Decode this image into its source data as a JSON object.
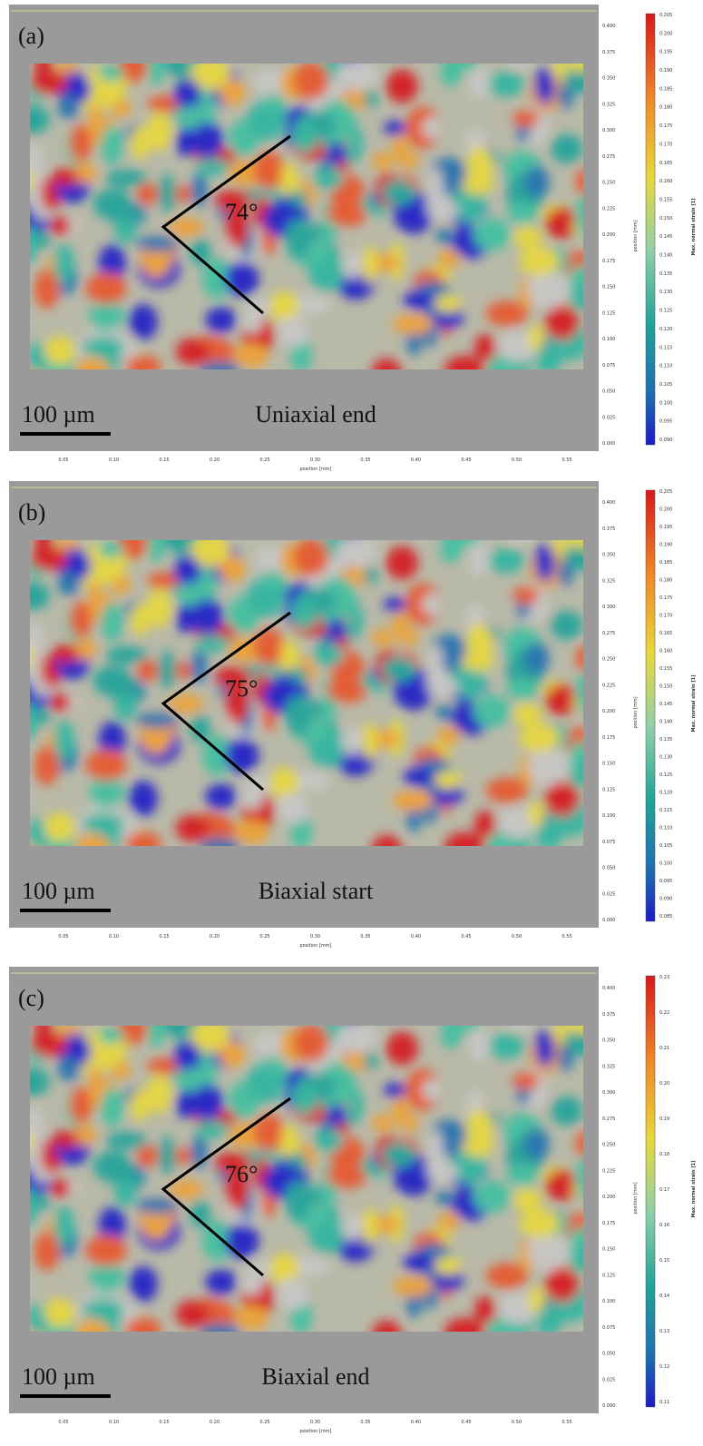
{
  "panels": [
    {
      "label": "(a)",
      "angle": "74°",
      "caption": "Uniaxial end",
      "scale_bar": "100 µm",
      "x_axis_label": "position [mm]",
      "y_axis_label": "position [mm]",
      "colorbar_label": "Max. normal strain [1]",
      "x_ticks": [
        "0.05",
        "0.10",
        "0.15",
        "0.20",
        "0.25",
        "0.30",
        "0.35",
        "0.40",
        "0.45",
        "0.50",
        "0.55"
      ],
      "y_ticks": [
        "0.000",
        "0.025",
        "0.050",
        "0.075",
        "0.100",
        "0.125",
        "0.150",
        "0.175",
        "0.200",
        "0.225",
        "0.250",
        "0.275",
        "0.300",
        "0.325",
        "0.350",
        "0.375",
        "0.400"
      ],
      "colorbar_ticks": [
        "0.205",
        "0.200",
        "0.195",
        "0.190",
        "0.185",
        "0.180",
        "0.175",
        "0.170",
        "0.165",
        "0.160",
        "0.155",
        "0.150",
        "0.145",
        "0.140",
        "0.135",
        "0.130",
        "0.125",
        "0.120",
        "0.115",
        "0.110",
        "0.105",
        "0.100",
        "0.095",
        "0.090"
      ]
    },
    {
      "label": "(b)",
      "angle": "75°",
      "caption": "Biaxial start",
      "scale_bar": "100 µm",
      "x_axis_label": "position [mm]",
      "y_axis_label": "position [mm]",
      "colorbar_label": "Max. normal strain [1]",
      "x_ticks": [
        "0.05",
        "0.10",
        "0.15",
        "0.20",
        "0.25",
        "0.30",
        "0.35",
        "0.40",
        "0.45",
        "0.50",
        "0.55"
      ],
      "y_ticks": [
        "0.000",
        "0.025",
        "0.050",
        "0.075",
        "0.100",
        "0.125",
        "0.150",
        "0.175",
        "0.200",
        "0.225",
        "0.250",
        "0.275",
        "0.300",
        "0.325",
        "0.350",
        "0.375",
        "0.400"
      ],
      "colorbar_ticks": [
        "0.205",
        "0.200",
        "0.195",
        "0.190",
        "0.185",
        "0.180",
        "0.175",
        "0.170",
        "0.165",
        "0.160",
        "0.155",
        "0.150",
        "0.145",
        "0.140",
        "0.135",
        "0.130",
        "0.125",
        "0.120",
        "0.115",
        "0.110",
        "0.105",
        "0.100",
        "0.095",
        "0.090",
        "0.085"
      ]
    },
    {
      "label": "(c)",
      "angle": "76°",
      "caption": "Biaxial end",
      "scale_bar": "100 µm",
      "x_axis_label": "position [mm]",
      "y_axis_label": "position [mm]",
      "colorbar_label": "Max. normal strain [1]",
      "x_ticks": [
        "0.05",
        "0.10",
        "0.15",
        "0.20",
        "0.25",
        "0.30",
        "0.35",
        "0.40",
        "0.45",
        "0.50",
        "0.55"
      ],
      "y_ticks": [
        "0.000",
        "0.025",
        "0.050",
        "0.075",
        "0.100",
        "0.125",
        "0.150",
        "0.175",
        "0.200",
        "0.225",
        "0.250",
        "0.275",
        "0.300",
        "0.325",
        "0.350",
        "0.375",
        "0.400"
      ],
      "colorbar_ticks": [
        "0.23",
        "0.22",
        "0.21",
        "0.20",
        "0.19",
        "0.18",
        "0.17",
        "0.16",
        "0.15",
        "0.14",
        "0.13",
        "0.12",
        "0.11"
      ]
    }
  ]
}
